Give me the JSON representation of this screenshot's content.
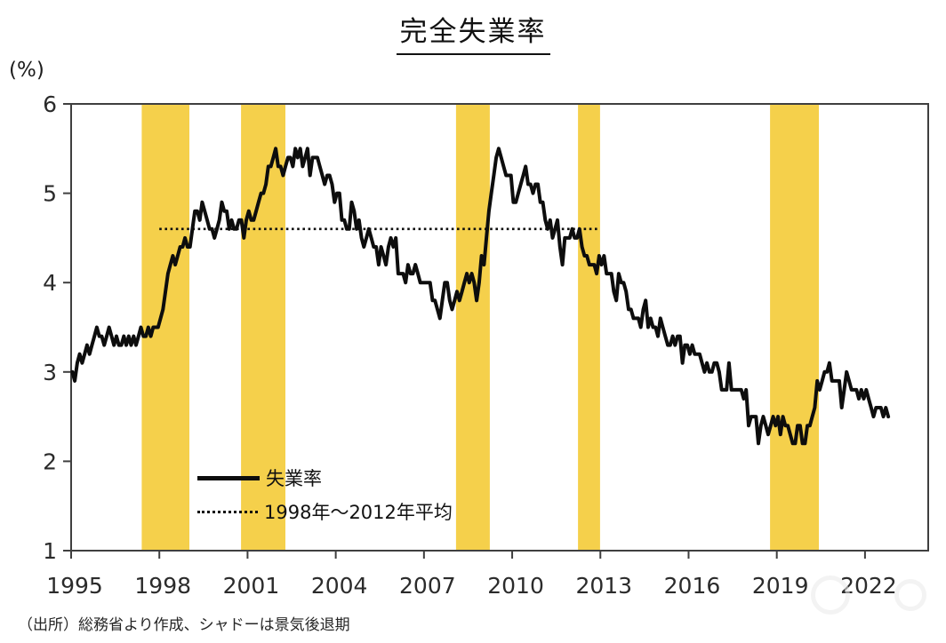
{
  "header": {
    "title": "完全失業率"
  },
  "chart_data": {
    "type": "line",
    "title": "完全失業率",
    "unit_label": "(%)",
    "source_note": "（出所）総務省より作成、シャドーは景気後退期",
    "ylim": [
      1,
      6
    ],
    "xlim": [
      1995,
      2024.15
    ],
    "yticks": [
      6,
      5,
      4,
      3,
      2,
      1
    ],
    "xticks": [
      1995,
      1998,
      2001,
      2004,
      2007,
      2010,
      2013,
      2016,
      2019,
      2022
    ],
    "colors": {
      "band": "#F5D04B",
      "line": "#0d0d0d",
      "axis": "#3f3f3f",
      "tick_text": "#2b2b2b"
    },
    "legend": {
      "series_label": "失業率",
      "average_label": "1998年～2012年平均"
    },
    "average_line": {
      "label": "1998年～2012年平均",
      "value": 4.6,
      "x_start": 1998.0,
      "x_end": 2012.93
    },
    "recession_bands": [
      {
        "start": 1997.4,
        "end": 1999.02
      },
      {
        "start": 2000.78,
        "end": 2002.29
      },
      {
        "start": 2008.09,
        "end": 2009.24
      },
      {
        "start": 2012.24,
        "end": 2012.99
      },
      {
        "start": 2018.77,
        "end": 2020.43
      }
    ],
    "series": [
      {
        "name": "失業率",
        "frequency": "monthly",
        "start_year": 1995,
        "start_month": 1,
        "values": [
          3.0,
          2.9,
          3.1,
          3.2,
          3.1,
          3.2,
          3.3,
          3.2,
          3.3,
          3.4,
          3.5,
          3.4,
          3.4,
          3.3,
          3.4,
          3.5,
          3.4,
          3.3,
          3.4,
          3.3,
          3.3,
          3.4,
          3.3,
          3.4,
          3.3,
          3.4,
          3.3,
          3.4,
          3.5,
          3.4,
          3.4,
          3.5,
          3.4,
          3.5,
          3.5,
          3.5,
          3.6,
          3.7,
          3.9,
          4.1,
          4.2,
          4.3,
          4.2,
          4.3,
          4.4,
          4.4,
          4.5,
          4.4,
          4.4,
          4.6,
          4.8,
          4.8,
          4.7,
          4.9,
          4.8,
          4.7,
          4.6,
          4.6,
          4.5,
          4.6,
          4.7,
          4.9,
          4.8,
          4.8,
          4.6,
          4.7,
          4.6,
          4.6,
          4.7,
          4.7,
          4.5,
          4.7,
          4.8,
          4.7,
          4.7,
          4.8,
          4.9,
          5.0,
          5.0,
          5.1,
          5.3,
          5.3,
          5.4,
          5.5,
          5.3,
          5.3,
          5.2,
          5.3,
          5.4,
          5.4,
          5.3,
          5.5,
          5.4,
          5.5,
          5.3,
          5.4,
          5.5,
          5.2,
          5.4,
          5.4,
          5.4,
          5.3,
          5.2,
          5.1,
          5.2,
          5.2,
          5.1,
          4.9,
          5.0,
          5.0,
          4.7,
          4.7,
          4.6,
          4.6,
          4.9,
          4.8,
          4.6,
          4.7,
          4.5,
          4.4,
          4.5,
          4.6,
          4.5,
          4.4,
          4.4,
          4.2,
          4.4,
          4.3,
          4.2,
          4.4,
          4.5,
          4.4,
          4.5,
          4.1,
          4.1,
          4.1,
          4.0,
          4.2,
          4.1,
          4.1,
          4.2,
          4.1,
          4.0,
          4.0,
          4.0,
          4.0,
          4.0,
          3.8,
          3.8,
          3.7,
          3.6,
          3.8,
          4.0,
          4.0,
          3.8,
          3.7,
          3.8,
          3.9,
          3.8,
          3.9,
          4.0,
          4.1,
          4.0,
          4.1,
          4.0,
          3.8,
          4.0,
          4.3,
          4.2,
          4.5,
          4.8,
          5.0,
          5.2,
          5.4,
          5.5,
          5.4,
          5.3,
          5.2,
          5.2,
          5.2,
          4.9,
          4.9,
          5.0,
          5.1,
          5.2,
          5.3,
          5.1,
          5.1,
          5.0,
          5.1,
          5.1,
          4.9,
          4.9,
          4.7,
          4.6,
          4.7,
          4.5,
          4.6,
          4.7,
          4.4,
          4.2,
          4.5,
          4.5,
          4.5,
          4.6,
          4.5,
          4.5,
          4.6,
          4.4,
          4.3,
          4.3,
          4.2,
          4.2,
          4.2,
          4.1,
          4.3,
          4.2,
          4.3,
          4.1,
          4.1,
          4.1,
          3.9,
          3.8,
          4.1,
          4.0,
          4.0,
          3.9,
          3.7,
          3.7,
          3.6,
          3.6,
          3.6,
          3.5,
          3.7,
          3.8,
          3.5,
          3.6,
          3.5,
          3.5,
          3.4,
          3.6,
          3.5,
          3.4,
          3.3,
          3.3,
          3.4,
          3.3,
          3.4,
          3.4,
          3.1,
          3.3,
          3.3,
          3.2,
          3.3,
          3.2,
          3.2,
          3.2,
          3.1,
          3.0,
          3.1,
          3.0,
          3.0,
          3.1,
          3.1,
          3.0,
          2.8,
          2.8,
          2.8,
          3.1,
          2.8,
          2.8,
          2.8,
          2.8,
          2.8,
          2.7,
          2.8,
          2.4,
          2.5,
          2.5,
          2.5,
          2.2,
          2.4,
          2.5,
          2.4,
          2.3,
          2.4,
          2.5,
          2.4,
          2.5,
          2.3,
          2.5,
          2.4,
          2.4,
          2.3,
          2.2,
          2.2,
          2.4,
          2.4,
          2.2,
          2.2,
          2.4,
          2.4,
          2.5,
          2.6,
          2.9,
          2.8,
          2.9,
          3.0,
          3.0,
          3.1,
          2.9,
          2.9,
          2.9,
          2.9,
          2.6,
          2.8,
          3.0,
          2.9,
          2.8,
          2.8,
          2.8,
          2.7,
          2.8,
          2.7,
          2.8,
          2.7,
          2.6,
          2.5,
          2.6,
          2.6,
          2.6,
          2.5,
          2.6,
          2.5
        ]
      }
    ]
  }
}
